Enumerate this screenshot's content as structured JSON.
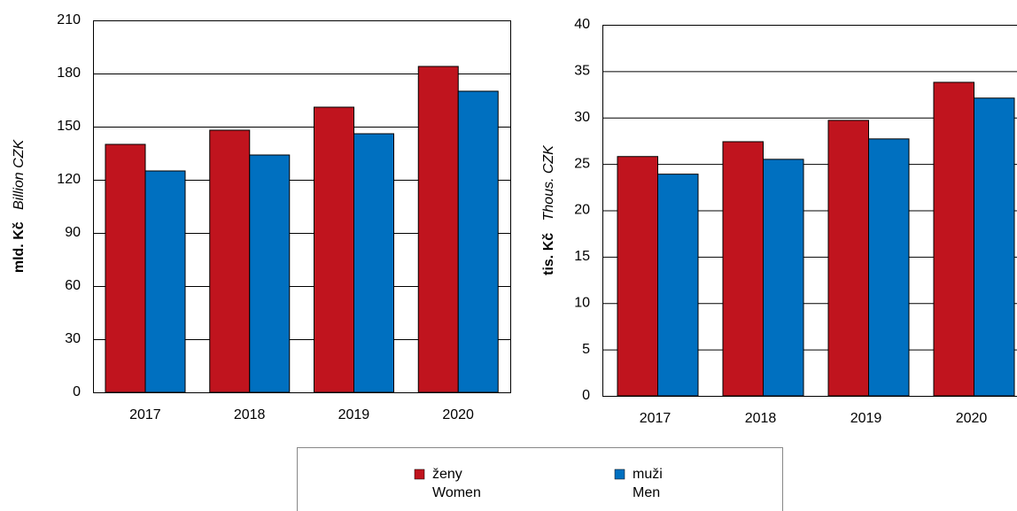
{
  "chart_data": [
    {
      "type": "bar",
      "y_label": "mld. Kč",
      "y_label_en": "Billion CZK",
      "categories": [
        "2017",
        "2018",
        "2019",
        "2020"
      ],
      "series": [
        {
          "color": "#c0141e",
          "values": [
            140,
            148,
            161,
            184
          ]
        },
        {
          "color": "#0070c0",
          "values": [
            125,
            134,
            146,
            170
          ]
        }
      ],
      "ylim": [
        0,
        210
      ],
      "yticks": [
        0,
        30,
        60,
        90,
        120,
        150,
        180,
        210
      ],
      "grid": true
    },
    {
      "type": "bar",
      "y_label": "tis. Kč",
      "y_label_en": "Thous. CZK",
      "categories": [
        "2017",
        "2018",
        "2019",
        "2020"
      ],
      "series": [
        {
          "color": "#c0141e",
          "values": [
            25.8,
            27.4,
            29.7,
            33.8
          ]
        },
        {
          "color": "#0070c0",
          "values": [
            23.9,
            25.5,
            27.7,
            32.1
          ]
        }
      ],
      "ylim": [
        0,
        40
      ],
      "yticks": [
        0,
        5,
        10,
        15,
        20,
        25,
        30,
        35,
        40
      ],
      "grid": true
    }
  ],
  "legend": [
    {
      "label": "ženy",
      "label_en": "Women",
      "color": "#c0141e"
    },
    {
      "label": "muži",
      "label_en": "Men",
      "color": "#0070c0"
    }
  ]
}
